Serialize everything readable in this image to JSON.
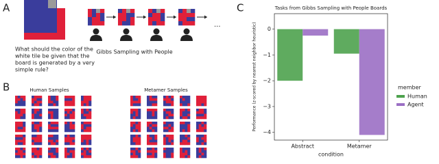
{
  "panel_labels": [
    "A",
    "B",
    "C"
  ],
  "panel_a": {
    "question": [
      "What should the color of the",
      "white tile be  given that the",
      "board is generated by a very",
      "simple rule?"
    ],
    "caption": "Gibbs Sampling with People",
    "ellipsis": "..."
  },
  "panel_b": {
    "human_title": "Human Samples",
    "metamer_title": "Metamer Samples"
  },
  "chart_data": {
    "type": "bar",
    "title": "Tasks from Gibbs Sampling with People Boards",
    "y_label": "Performance (z-scored by nearest neighbor heuristic)",
    "x_label": "condition",
    "categories": [
      "Abstract",
      "Metamer"
    ],
    "series": [
      {
        "name": "Human",
        "color": "#4ea24e",
        "values": [
          -2.0,
          -0.95
        ]
      },
      {
        "name": "Agent",
        "color": "#9b6fc4",
        "values": [
          -0.25,
          -4.1
        ]
      }
    ],
    "legend_title": "member",
    "legend": "right",
    "ylim": [
      -4.3,
      0.6
    ],
    "yticks": [
      {
        "value": 0,
        "label": "0"
      },
      {
        "value": -1,
        "label": "−1"
      },
      {
        "value": -2,
        "label": "−2"
      },
      {
        "value": -3,
        "label": "−3"
      },
      {
        "value": -4,
        "label": "−4"
      }
    ]
  }
}
